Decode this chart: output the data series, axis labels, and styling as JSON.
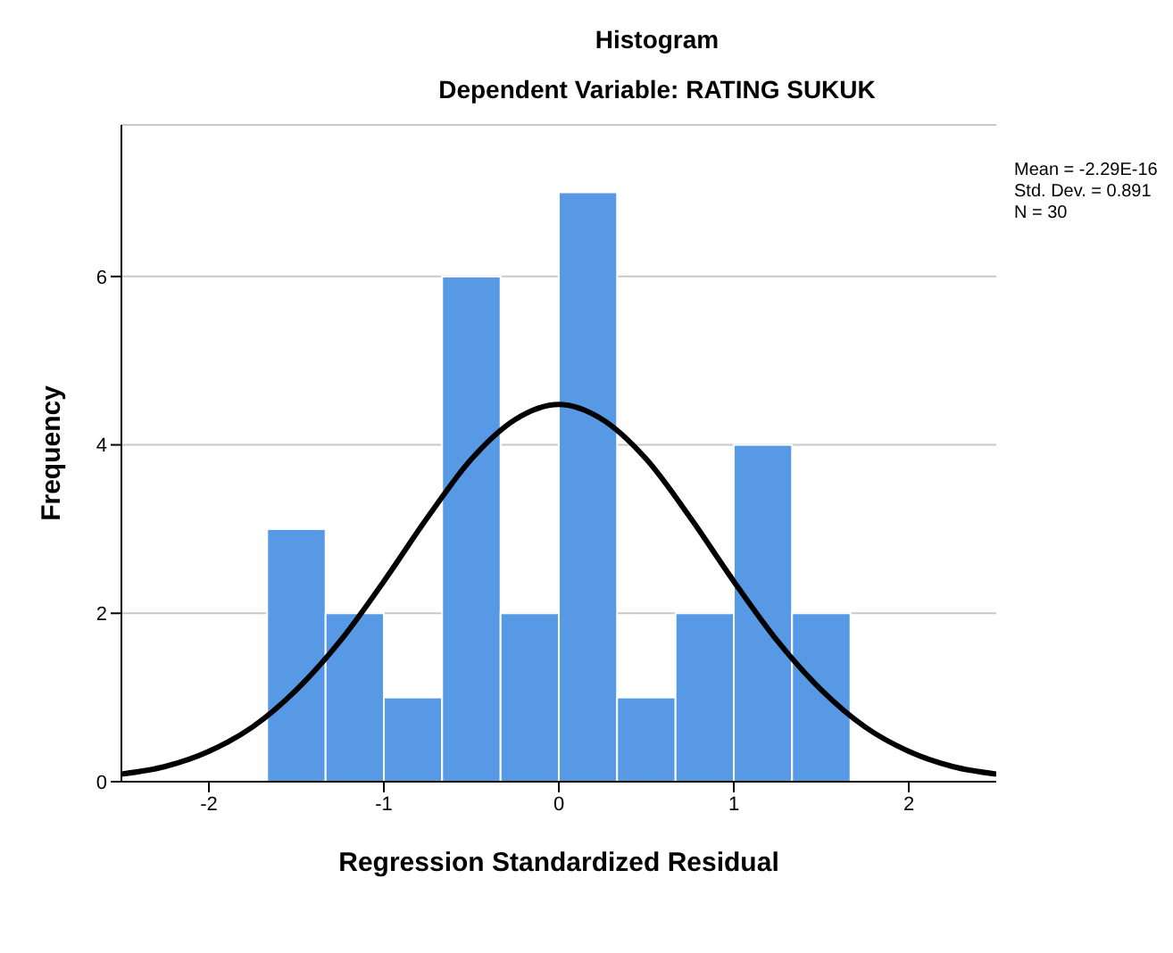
{
  "chart_data": {
    "type": "histogram",
    "title": "Histogram",
    "subtitle": "Dependent Variable: RATING SUKUK",
    "xlabel": "Regression Standardized Residual",
    "ylabel": "Frequency",
    "bins": [
      -1.667,
      -1.333,
      -1,
      -0.667,
      -0.333,
      0,
      0.333,
      0.667,
      1,
      1.333,
      1.667
    ],
    "values": [
      3,
      2,
      1,
      6,
      2,
      7,
      1,
      2,
      4,
      2
    ],
    "color": "#5799e5",
    "series": [
      {
        "type": "line",
        "color": "#000000",
        "x": [
          -2.5,
          -2.25,
          -2,
          -1.75,
          -1.5,
          -1.25,
          -1,
          -0.75,
          -0.5,
          -0.25,
          0,
          0.25,
          0.5,
          0.75,
          1,
          1.25,
          1.5,
          1.75,
          2,
          2.25,
          2.5
        ],
        "values": [
          0.09,
          0.18,
          0.36,
          0.65,
          1.09,
          1.67,
          2.38,
          3.14,
          3.83,
          4.3,
          4.48,
          4.3,
          3.83,
          3.14,
          2.38,
          1.67,
          1.09,
          0.65,
          0.36,
          0.18,
          0.09
        ]
      }
    ],
    "xlim": [
      -2.5,
      2.5
    ],
    "xticks": [
      -2,
      -1,
      0,
      1,
      2
    ],
    "ylim": [
      0,
      7.8
    ],
    "yticks": [
      0,
      2,
      4,
      6
    ],
    "grid": "y",
    "marker": "none",
    "annotations": [
      "Mean = -2.29E-16",
      "Std. Dev. = 0.891",
      "N = 30"
    ]
  }
}
